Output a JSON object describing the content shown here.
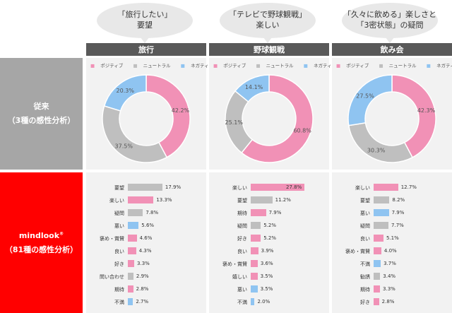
{
  "bubbles": [
    [
      "「旅行したい」",
      "要望"
    ],
    [
      "「テレビで野球観戦」",
      "楽しい"
    ],
    [
      "「久々に飲める」楽しさと",
      "「3密状態」の疑問"
    ]
  ],
  "columns": [
    "旅行",
    "野球観戦",
    "飲み会"
  ],
  "rows": {
    "conventional": {
      "line1": "従来",
      "line2": "（3種の感性分析）"
    },
    "mindlook": {
      "line1": "mindlook",
      "mark": "®",
      "line2": "（81種の感性分析）"
    }
  },
  "legend": [
    "ポジティブ",
    "ニュートラル",
    "ネガティブ"
  ],
  "colors": {
    "positive": "#f191b6",
    "neutral": "#bfbfbf",
    "negative": "#8fc4f1",
    "gray_band": "#a6a6a6",
    "red_band": "#ff0000",
    "header": "#595959",
    "panel": "#f2f2f2"
  },
  "chart_data": [
    {
      "type": "pie",
      "title": "旅行",
      "labels": [
        "ポジティブ",
        "ニュートラル",
        "ネガティブ"
      ],
      "values": [
        42.2,
        37.5,
        20.3
      ],
      "value_labels": [
        "42.2%",
        "37.5%",
        "20.3%"
      ]
    },
    {
      "type": "pie",
      "title": "野球観戦",
      "labels": [
        "ポジティブ",
        "ニュートラル",
        "ネガティブ"
      ],
      "values": [
        60.8,
        25.1,
        14.1
      ],
      "value_labels": [
        "60.8%",
        "25.1%",
        "14.1%"
      ]
    },
    {
      "type": "pie",
      "title": "飲み会",
      "labels": [
        "ポジティブ",
        "ニュートラル",
        "ネガティブ"
      ],
      "values": [
        42.3,
        30.3,
        27.5
      ],
      "value_labels": [
        "42.3%",
        "30.3%",
        "27.5%"
      ]
    },
    {
      "type": "bar",
      "title": "旅行",
      "categories": [
        "要望",
        "楽しい",
        "疑問",
        "悪い",
        "褒め・賞賛",
        "良い",
        "好き",
        "問い合わせ",
        "期待",
        "不満"
      ],
      "values": [
        17.9,
        13.3,
        7.8,
        5.6,
        4.6,
        4.3,
        3.3,
        2.9,
        2.8,
        2.7
      ],
      "value_labels": [
        "17.9%",
        "13.3%",
        "7.8%",
        "5.6%",
        "4.6%",
        "4.3%",
        "3.3%",
        "2.9%",
        "2.8%",
        "2.7%"
      ],
      "polarity": [
        "neutral",
        "positive",
        "neutral",
        "negative",
        "positive",
        "positive",
        "positive",
        "neutral",
        "positive",
        "negative"
      ]
    },
    {
      "type": "bar",
      "title": "野球観戦",
      "categories": [
        "楽しい",
        "要望",
        "期待",
        "疑問",
        "好き",
        "良い",
        "褒め・賞賛",
        "嬉しい",
        "悪い",
        "不満"
      ],
      "values": [
        27.8,
        11.2,
        7.9,
        5.2,
        5.2,
        3.9,
        3.6,
        3.5,
        3.5,
        2.0
      ],
      "value_labels": [
        "27.8%",
        "11.2%",
        "7.9%",
        "5.2%",
        "5.2%",
        "3.9%",
        "3.6%",
        "3.5%",
        "3.5%",
        "2.0%"
      ],
      "polarity": [
        "positive",
        "neutral",
        "positive",
        "neutral",
        "positive",
        "positive",
        "positive",
        "positive",
        "negative",
        "negative"
      ]
    },
    {
      "type": "bar",
      "title": "飲み会",
      "categories": [
        "楽しい",
        "要望",
        "悪い",
        "疑問",
        "良い",
        "褒め・賞賛",
        "不満",
        "勧誘",
        "期待",
        "好き"
      ],
      "values": [
        12.7,
        8.2,
        7.9,
        7.7,
        5.1,
        4.0,
        3.7,
        3.4,
        3.3,
        2.8
      ],
      "value_labels": [
        "12.7%",
        "8.2%",
        "7.9%",
        "7.7%",
        "5.1%",
        "4.0%",
        "3.7%",
        "3.4%",
        "3.3%",
        "2.8%"
      ],
      "polarity": [
        "positive",
        "neutral",
        "negative",
        "neutral",
        "positive",
        "positive",
        "negative",
        "neutral",
        "positive",
        "positive"
      ]
    }
  ]
}
